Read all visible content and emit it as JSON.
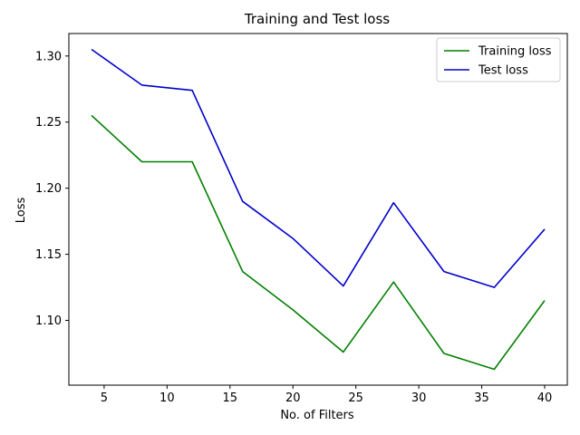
{
  "chart_data": {
    "type": "line",
    "title": "Training and Test loss",
    "xlabel": "No. of Filters",
    "ylabel": "Loss",
    "x": [
      4,
      8,
      12,
      16,
      20,
      24,
      28,
      32,
      36,
      40
    ],
    "series": [
      {
        "name": "Training loss",
        "color": "#008000",
        "values": [
          1.255,
          1.22,
          1.22,
          1.137,
          1.108,
          1.076,
          1.129,
          1.075,
          1.063,
          1.115
        ]
      },
      {
        "name": "Test loss",
        "color": "#0000cc",
        "values": [
          1.305,
          1.278,
          1.274,
          1.19,
          1.162,
          1.126,
          1.189,
          1.137,
          1.125,
          1.169
        ]
      }
    ],
    "xticks": [
      5,
      10,
      15,
      20,
      25,
      30,
      35,
      40
    ],
    "yticks": [
      1.1,
      1.15,
      1.2,
      1.25,
      1.3
    ],
    "ytick_labels": [
      "1.10",
      "1.15",
      "1.20",
      "1.25",
      "1.30"
    ],
    "xlim": [
      2.2,
      41.8
    ],
    "ylim": [
      1.051,
      1.317
    ],
    "grid": false,
    "legend_position": "top-right"
  }
}
